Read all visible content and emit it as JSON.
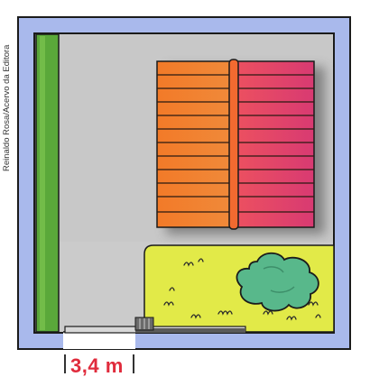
{
  "credit": "Reinaldo Rosa/Acervo da Editora",
  "measurement": {
    "label": "3,4 m"
  },
  "colors": {
    "wall_blue": "#a9b9ec",
    "wall_stroke": "#1b1b1b",
    "floor": "#c9c9c9",
    "hedge_green": "#5aa83a",
    "lawn": "#e2ea48",
    "bush": "#58b88b",
    "roof_left": "#f07a2a",
    "roof_right": "#e0456a",
    "measure_red": "#e02b3c",
    "gate_stone": "#6a6a6a"
  },
  "icons": {
    "roof": "roof-icon",
    "bush": "bush-icon",
    "gate": "gate-icon",
    "grass_tuft": "grass-tuft-icon"
  }
}
